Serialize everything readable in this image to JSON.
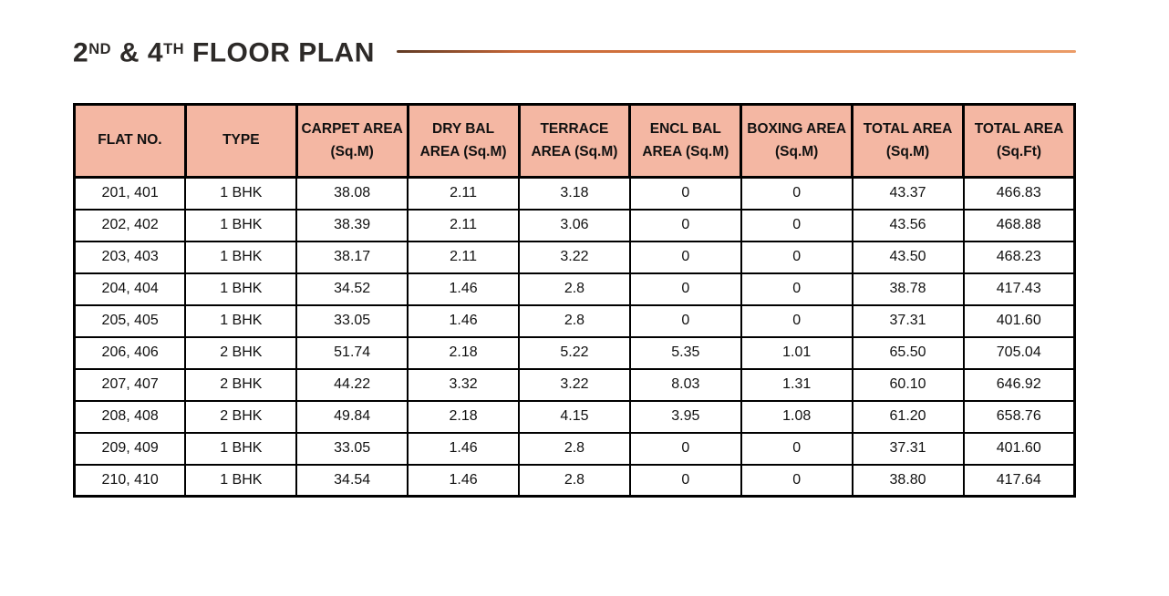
{
  "title": {
    "part1": "2",
    "sup1": "ND",
    "part2": " & 4",
    "sup2": "TH",
    "part3": " FLOOR PLAN"
  },
  "colors": {
    "header_bg": "#F4B7A3",
    "table_border": "#000000",
    "title_text": "#2D2A28",
    "divider_gradient": [
      "#5F3A24",
      "#C76737",
      "#DF8147",
      "#EB9C68"
    ]
  },
  "table": {
    "headers": [
      {
        "label": "FLAT NO."
      },
      {
        "label": "TYPE"
      },
      {
        "label": "CARPET AREA\n(Sq.M)"
      },
      {
        "label": "DRY BAL\nAREA (Sq.M)"
      },
      {
        "label": "TERRACE\nAREA (Sq.M)"
      },
      {
        "label": "ENCL BAL\nAREA (Sq.M)"
      },
      {
        "label": "BOXING AREA\n(Sq.M)"
      },
      {
        "label": "TOTAL AREA\n(Sq.M)"
      },
      {
        "label": "TOTAL AREA\n(Sq.Ft)"
      }
    ],
    "rows": [
      {
        "flat_no": "201, 401",
        "type": "1 BHK",
        "carpet_area": "38.08",
        "dry_bal": "2.11",
        "terrace": "3.18",
        "encl_bal": "0",
        "boxing": "0",
        "total_sqm": "43.37",
        "total_sqft": "466.83"
      },
      {
        "flat_no": "202, 402",
        "type": "1 BHK",
        "carpet_area": "38.39",
        "dry_bal": "2.11",
        "terrace": "3.06",
        "encl_bal": "0",
        "boxing": "0",
        "total_sqm": "43.56",
        "total_sqft": "468.88"
      },
      {
        "flat_no": "203, 403",
        "type": "1 BHK",
        "carpet_area": "38.17",
        "dry_bal": "2.11",
        "terrace": "3.22",
        "encl_bal": "0",
        "boxing": "0",
        "total_sqm": "43.50",
        "total_sqft": "468.23"
      },
      {
        "flat_no": "204, 404",
        "type": "1 BHK",
        "carpet_area": "34.52",
        "dry_bal": "1.46",
        "terrace": "2.8",
        "encl_bal": "0",
        "boxing": "0",
        "total_sqm": "38.78",
        "total_sqft": "417.43"
      },
      {
        "flat_no": "205, 405",
        "type": "1 BHK",
        "carpet_area": "33.05",
        "dry_bal": "1.46",
        "terrace": "2.8",
        "encl_bal": "0",
        "boxing": "0",
        "total_sqm": "37.31",
        "total_sqft": "401.60"
      },
      {
        "flat_no": "206, 406",
        "type": "2 BHK",
        "carpet_area": "51.74",
        "dry_bal": "2.18",
        "terrace": "5.22",
        "encl_bal": "5.35",
        "boxing": "1.01",
        "total_sqm": "65.50",
        "total_sqft": "705.04"
      },
      {
        "flat_no": "207, 407",
        "type": "2 BHK",
        "carpet_area": "44.22",
        "dry_bal": "3.32",
        "terrace": "3.22",
        "encl_bal": "8.03",
        "boxing": "1.31",
        "total_sqm": "60.10",
        "total_sqft": "646.92"
      },
      {
        "flat_no": "208, 408",
        "type": "2 BHK",
        "carpet_area": "49.84",
        "dry_bal": "2.18",
        "terrace": "4.15",
        "encl_bal": "3.95",
        "boxing": "1.08",
        "total_sqm": "61.20",
        "total_sqft": "658.76"
      },
      {
        "flat_no": "209, 409",
        "type": "1 BHK",
        "carpet_area": "33.05",
        "dry_bal": "1.46",
        "terrace": "2.8",
        "encl_bal": "0",
        "boxing": "0",
        "total_sqm": "37.31",
        "total_sqft": "401.60"
      },
      {
        "flat_no": "210, 410",
        "type": "1 BHK",
        "carpet_area": "34.54",
        "dry_bal": "1.46",
        "terrace": "2.8",
        "encl_bal": "0",
        "boxing": "0",
        "total_sqm": "38.80",
        "total_sqft": "417.64"
      }
    ]
  }
}
